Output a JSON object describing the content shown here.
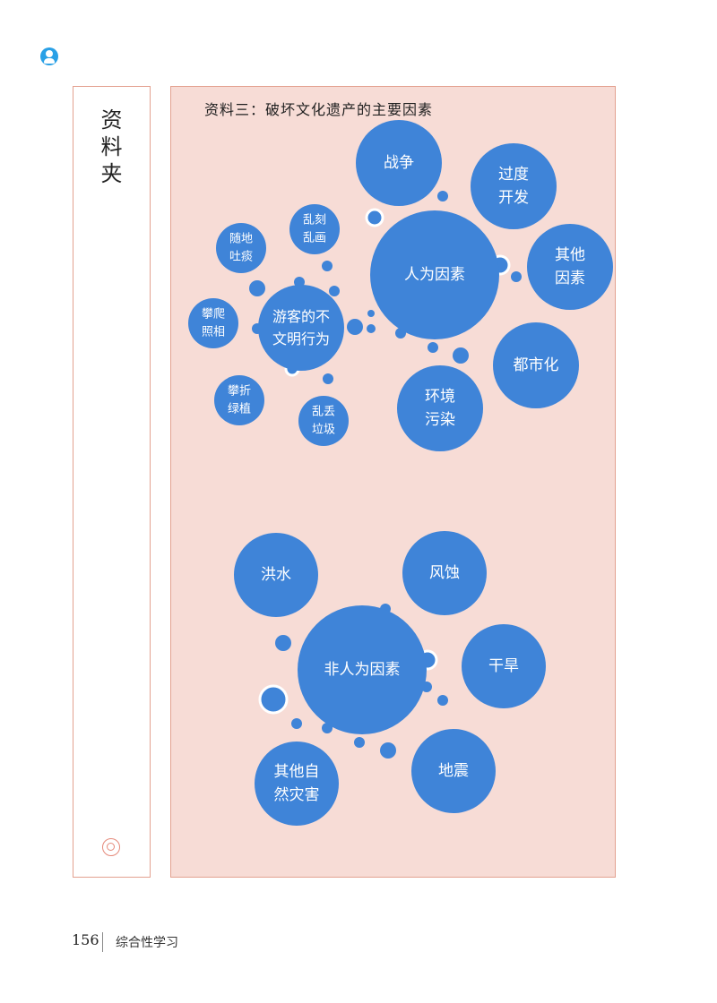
{
  "side_title": [
    "资",
    "料",
    "夹"
  ],
  "material_title": "资料三：破坏文化遗产的主要因素",
  "human": {
    "center": [
      "人为因素"
    ],
    "factors": [
      {
        "key": "war",
        "lines": [
          "战争"
        ]
      },
      {
        "key": "overdev",
        "lines": [
          "过度",
          "开发"
        ]
      },
      {
        "key": "other",
        "lines": [
          "其他",
          "因素"
        ]
      },
      {
        "key": "urban",
        "lines": [
          "都市化"
        ]
      },
      {
        "key": "pollution",
        "lines": [
          "环境",
          "污染"
        ]
      },
      {
        "key": "tourist",
        "lines": [
          "游客的不",
          "文明行为"
        ]
      }
    ],
    "tourist_behaviors": [
      {
        "key": "graffiti",
        "lines": [
          "乱刻",
          "乱画"
        ]
      },
      {
        "key": "spit",
        "lines": [
          "随地",
          "吐痰"
        ]
      },
      {
        "key": "climb",
        "lines": [
          "攀爬",
          "照相"
        ]
      },
      {
        "key": "pick",
        "lines": [
          "攀折",
          "绿植"
        ]
      },
      {
        "key": "litter",
        "lines": [
          "乱丢",
          "垃圾"
        ]
      }
    ]
  },
  "natural": {
    "center": [
      "非人为因素"
    ],
    "factors": [
      {
        "key": "flood",
        "lines": [
          "洪水"
        ]
      },
      {
        "key": "erosion",
        "lines": [
          "风蚀"
        ]
      },
      {
        "key": "drought",
        "lines": [
          "干旱"
        ]
      },
      {
        "key": "earthquake",
        "lines": [
          "地震"
        ]
      },
      {
        "key": "other-disaster",
        "lines": [
          "其他自",
          "然灾害"
        ]
      }
    ]
  },
  "footer": {
    "page_number": "156",
    "section": "综合性学习"
  },
  "colors": {
    "bubble": "#3f84d8",
    "panel": "#f7dcd6",
    "border": "#e3a190",
    "icon": "#29a0e6"
  }
}
